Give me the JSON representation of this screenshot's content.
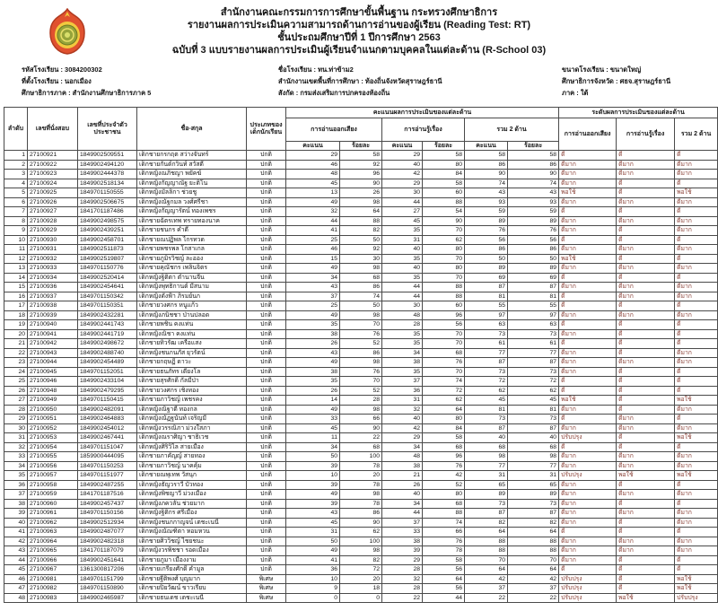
{
  "colors": {
    "text": "#161616",
    "border": "#4a4a4a",
    "level_text": "#8b4238",
    "logo_red": "#e0512f",
    "logo_yellow": "#f2c93e",
    "logo_green": "#96a43a"
  },
  "header": {
    "logo_icon": "obec-ministry-emblem",
    "line1": "สำนักงานคณะกรรมการการศึกษาขั้นพื้นฐาน กระทรวงศึกษาธิการ",
    "line2": "รายงานผลการประเมินความสามารถด้านการอ่านของผู้เรียน (Reading Test: RT)",
    "line3": "ชั้นประถมศึกษาปีที่ 1 ปีการศึกษา 2563",
    "line4": "ฉบับที่ 3 แบบรายงานผลการประเมินผู้เรียนจำแนกตามบุคคลในแต่ละด้าน (R-School 03)"
  },
  "school_info": {
    "col1": [
      "รหัสโรงเรียน : 3084200302",
      "ที่ตั้งโรงเรียน : นอกเมือง",
      "ศึกษาธิการภาค : สำนักงานศึกษาธิการภาค 5"
    ],
    "col2": [
      "ชื่อโรงเรียน : ทน.ท่าข้าม2",
      "สำนักงานเขตพื้นที่การศึกษา : ท้องถิ่นจังหวัดสุราษฎร์ธานี",
      "สังกัด : กรมส่งเสริมการปกครองท้องถิ่น"
    ],
    "col3": [
      "ขนาดโรงเรียน : ขนาดใหญ่",
      "ศึกษาธิการจังหวัด : ศธจ.สุราษฎร์ธานี",
      "ภาค : ใต้"
    ]
  },
  "table": {
    "col_no": "ลำดับ",
    "col_seat": "เลขที่นั่งสอบ",
    "col_id": "เลขที่ประจำตัวประชาชน",
    "col_name": "ชื่อ-สกุล",
    "col_type": "ประเภทของเด็กนักเรียน",
    "title_scores": "คะแนนผลการประเมินของแต่ละด้าน",
    "title_levels": "ระดับผลการประเมินของแต่ละด้าน",
    "col_reading_aloud": "การอ่านออกเสียง",
    "col_reading_comp": "การอ่านรู้เรื่อง",
    "col_total": "รวม 2 ด้าน",
    "col_score": "คะแนน",
    "col_percent": "ร้อยละ",
    "rows": [
      {
        "no": 1,
        "seat": "27100921",
        "id": "1849902509551",
        "name": "เด็กชายกรกฤต สว่างจันทร์",
        "type": "ปกติ",
        "s1": 29,
        "p1": 58,
        "s2": 29,
        "p2": 58,
        "s3": 58,
        "p3": 58,
        "l1": "ดี",
        "l2": "ดี",
        "l3": "ดี"
      },
      {
        "no": 2,
        "seat": "27100922",
        "id": "1849902494120",
        "name": "เด็กชายกันต์กวินท์ สวัสดี",
        "type": "ปกติ",
        "s1": 46,
        "p1": 92,
        "s2": 40,
        "p2": 80,
        "s3": 86,
        "p3": 86,
        "l1": "ดีมาก",
        "l2": "ดีมาก",
        "l3": "ดีมาก"
      },
      {
        "no": 3,
        "seat": "27100923",
        "id": "1849902444378",
        "name": "เด็กหญิงณภิชญา พยัคฆ์",
        "type": "ปกติ",
        "s1": 48,
        "p1": 96,
        "s2": 42,
        "p2": 84,
        "s3": 90,
        "p3": 90,
        "l1": "ดีมาก",
        "l2": "ดีมาก",
        "l3": "ดีมาก"
      },
      {
        "no": 4,
        "seat": "27100924",
        "id": "1849902518134",
        "name": "เด็กหญิงกัญญาณัฐ ยะติโน",
        "type": "ปกติ",
        "s1": 45,
        "p1": 90,
        "s2": 29,
        "p2": 58,
        "s3": 74,
        "p3": 74,
        "l1": "ดีมาก",
        "l2": "ดี",
        "l3": "ดี"
      },
      {
        "no": 5,
        "seat": "27100925",
        "id": "1849701150555",
        "name": "เด็กหญิงมัลลิกา ช่วยชู",
        "type": "ปกติ",
        "s1": 13,
        "p1": 26,
        "s2": 30,
        "p2": 60,
        "s3": 43,
        "p3": 43,
        "l1": "พอใช้",
        "l2": "ดี",
        "l3": "พอใช้"
      },
      {
        "no": 6,
        "seat": "27100926",
        "id": "1849902506675",
        "name": "เด็กหญิงณัฐกมล วงศ์ศรีชา",
        "type": "ปกติ",
        "s1": 49,
        "p1": 98,
        "s2": 44,
        "p2": 88,
        "s3": 93,
        "p3": 93,
        "l1": "ดีมาก",
        "l2": "ดีมาก",
        "l3": "ดีมาก"
      },
      {
        "no": 7,
        "seat": "27100927",
        "id": "1841701187486",
        "name": "เด็กหญิงกัญญารัตน์ ทองเพชร",
        "type": "ปกติ",
        "s1": 32,
        "p1": 64,
        "s2": 27,
        "p2": 54,
        "s3": 59,
        "p3": 59,
        "l1": "ดี",
        "l2": "ดี",
        "l3": "ดี"
      },
      {
        "no": 8,
        "seat": "27100928",
        "id": "1849902498575",
        "name": "เด็กชายฉัตรเทพ ทรายทองนาค",
        "type": "ปกติ",
        "s1": 44,
        "p1": 88,
        "s2": 45,
        "p2": 90,
        "s3": 89,
        "p3": 89,
        "l1": "ดีมาก",
        "l2": "ดีมาก",
        "l3": "ดีมาก"
      },
      {
        "no": 9,
        "seat": "27100929",
        "id": "1849902439251",
        "name": "เด็กชายชนกร คำดี",
        "type": "ปกติ",
        "s1": 41,
        "p1": 82,
        "s2": 35,
        "p2": 70,
        "s3": 76,
        "p3": 76,
        "l1": "ดีมาก",
        "l2": "ดี",
        "l3": "ดีมาก"
      },
      {
        "no": 10,
        "seat": "27100930",
        "id": "1849902458701",
        "name": "เด็กชายณปฏิพล ไกรทวด",
        "type": "ปกติ",
        "s1": 25,
        "p1": 50,
        "s2": 31,
        "p2": 62,
        "s3": 56,
        "p3": 56,
        "l1": "ดี",
        "l2": "ดี",
        "l3": "ดี"
      },
      {
        "no": 11,
        "seat": "27100931",
        "id": "1849902511873",
        "name": "เด็กชายพชรพล โกสาเกล",
        "type": "ปกติ",
        "s1": 46,
        "p1": 92,
        "s2": 40,
        "p2": 80,
        "s3": 86,
        "p3": 86,
        "l1": "ดีมาก",
        "l2": "ดีมาก",
        "l3": "ดีมาก"
      },
      {
        "no": 12,
        "seat": "27100932",
        "id": "1849902519807",
        "name": "เด็กชายภูมิรวิชญ์ ละออง",
        "type": "ปกติ",
        "s1": 15,
        "p1": 30,
        "s2": 35,
        "p2": 70,
        "s3": 50,
        "p3": 50,
        "l1": "พอใช้",
        "l2": "ดี",
        "l3": "ดี"
      },
      {
        "no": 13,
        "seat": "27100933",
        "id": "1849701150776",
        "name": "เด็กชายคุณัชกร เพลินจิตร",
        "type": "ปกติ",
        "s1": 49,
        "p1": 98,
        "s2": 40,
        "p2": 80,
        "s3": 89,
        "p3": 89,
        "l1": "ดีมาก",
        "l2": "ดีมาก",
        "l3": "ดีมาก"
      },
      {
        "no": 14,
        "seat": "27100934",
        "id": "1849902520414",
        "name": "เด็กหญิงฐิติตา ตำนานจีน",
        "type": "ปกติ",
        "s1": 34,
        "p1": 68,
        "s2": 35,
        "p2": 70,
        "s3": 69,
        "p3": 69,
        "l1": "ดี",
        "l2": "ดี",
        "l3": "ดี"
      },
      {
        "no": 15,
        "seat": "27100936",
        "id": "1849902454641",
        "name": "เด็กหญิงพุทธิกานต์ มีสนาม",
        "type": "ปกติ",
        "s1": 43,
        "p1": 86,
        "s2": 44,
        "p2": 88,
        "s3": 87,
        "p3": 87,
        "l1": "ดีมาก",
        "l2": "ดีมาก",
        "l3": "ดีมาก"
      },
      {
        "no": 16,
        "seat": "27100937",
        "id": "1849701150342",
        "name": "เด็กหญิงดังฟ้า ภิรมย์นก",
        "type": "ปกติ",
        "s1": 37,
        "p1": 74,
        "s2": 44,
        "p2": 88,
        "s3": 81,
        "p3": 81,
        "l1": "ดี",
        "l2": "ดีมาก",
        "l3": "ดีมาก"
      },
      {
        "no": 17,
        "seat": "27100938",
        "id": "1849701150351",
        "name": "เด็กชายวงศกร หนูแก้ว",
        "type": "ปกติ",
        "s1": 25,
        "p1": 50,
        "s2": 30,
        "p2": 60,
        "s3": 55,
        "p3": 55,
        "l1": "ดี",
        "l2": "ดี",
        "l3": "ดี"
      },
      {
        "no": 18,
        "seat": "27100939",
        "id": "1849902432281",
        "name": "เด็กหญิงภนิชชา ป่านปลอด",
        "type": "ปกติ",
        "s1": 49,
        "p1": 98,
        "s2": 48,
        "p2": 96,
        "s3": 97,
        "p3": 97,
        "l1": "ดีมาก",
        "l2": "ดีมาก",
        "l3": "ดีมาก"
      },
      {
        "no": 19,
        "seat": "27100940",
        "id": "1849902441743",
        "name": "เด็กชายพชิน คงแท่น",
        "type": "ปกติ",
        "s1": 35,
        "p1": 70,
        "s2": 28,
        "p2": 56,
        "s3": 63,
        "p3": 63,
        "l1": "ดี",
        "l2": "ดี",
        "l3": "ดี"
      },
      {
        "no": 20,
        "seat": "27100941",
        "id": "1849902441719",
        "name": "เด็กหญิงณิชา คงแท่น",
        "type": "ปกติ",
        "s1": 38,
        "p1": 76,
        "s2": 35,
        "p2": 70,
        "s3": 73,
        "p3": 73,
        "l1": "ดีมาก",
        "l2": "ดี",
        "l3": "ดี"
      },
      {
        "no": 21,
        "seat": "27100942",
        "id": "1849902498672",
        "name": "เด็กชายทิวรัฒ เครือแสง",
        "type": "ปกติ",
        "s1": 26,
        "p1": 52,
        "s2": 35,
        "p2": 70,
        "s3": 61,
        "p3": 61,
        "l1": "ดี",
        "l2": "ดี",
        "l3": "ดี"
      },
      {
        "no": 22,
        "seat": "27100943",
        "id": "1849902488740",
        "name": "เด็กหญิงชนกนภัส ยุวรัตน์",
        "type": "ปกติ",
        "s1": 43,
        "p1": 86,
        "s2": 34,
        "p2": 68,
        "s3": 77,
        "p3": 77,
        "l1": "ดีมาก",
        "l2": "ดี",
        "l3": "ดีมาก"
      },
      {
        "no": 23,
        "seat": "27100944",
        "id": "1849902454489",
        "name": "เด็กชายกฤษฏิ์ ดาวะ",
        "type": "ปกติ",
        "s1": 49,
        "p1": 98,
        "s2": 38,
        "p2": 76,
        "s3": 87,
        "p3": 87,
        "l1": "ดีมาก",
        "l2": "ดีมาก",
        "l3": "ดีมาก"
      },
      {
        "no": 24,
        "seat": "27100945",
        "id": "1849701152051",
        "name": "เด็กชายธนภัทร เดี่ยงโล",
        "type": "ปกติ",
        "s1": 38,
        "p1": 76,
        "s2": 35,
        "p2": 70,
        "s3": 73,
        "p3": 73,
        "l1": "ดีมาก",
        "l2": "ดี",
        "l3": "ดี"
      },
      {
        "no": 25,
        "seat": "27100946",
        "id": "1849902433104",
        "name": "เด็กชายสุรศักดิ์ กัลมีป่า",
        "type": "ปกติ",
        "s1": 35,
        "p1": 70,
        "s2": 37,
        "p2": 74,
        "s3": 72,
        "p3": 72,
        "l1": "ดี",
        "l2": "ดี",
        "l3": "ดี"
      },
      {
        "no": 26,
        "seat": "27100948",
        "id": "1849902479295",
        "name": "เด็กชายวงศกร เชิงทอง",
        "type": "ปกติ",
        "s1": 26,
        "p1": 52,
        "s2": 36,
        "p2": 72,
        "s3": 62,
        "p3": 62,
        "l1": "ดี",
        "l2": "ดี",
        "l3": "ดี"
      },
      {
        "no": 27,
        "seat": "27100949",
        "id": "1849701150415",
        "name": "เด็กชายภาวิชญ์ เพชรคง",
        "type": "ปกติ",
        "s1": 14,
        "p1": 28,
        "s2": 31,
        "p2": 62,
        "s3": 45,
        "p3": 45,
        "l1": "พอใช้",
        "l2": "ดี",
        "l3": "พอใช้"
      },
      {
        "no": 28,
        "seat": "27100950",
        "id": "1849902482091",
        "name": "เด็กหญิงณิฐาดี ทองกล",
        "type": "ปกติ",
        "s1": 49,
        "p1": 98,
        "s2": 32,
        "p2": 64,
        "s3": 81,
        "p3": 81,
        "l1": "ดีมาก",
        "l2": "ดี",
        "l3": "ดีมาก"
      },
      {
        "no": 29,
        "seat": "27100951",
        "id": "1849902464883",
        "name": "เด็กหญิงณัฏฐนันท์ เจริญมี",
        "type": "ปกติ",
        "s1": 33,
        "p1": 66,
        "s2": 40,
        "p2": 80,
        "s3": 73,
        "p3": 73,
        "l1": "ดี",
        "l2": "ดีมาก",
        "l3": "ดี"
      },
      {
        "no": 30,
        "seat": "27100952",
        "id": "1849902454012",
        "name": "เด็กหญิงวรรณิภา ม่วงใสภา",
        "type": "ปกติ",
        "s1": 45,
        "p1": 90,
        "s2": 42,
        "p2": 84,
        "s3": 87,
        "p3": 87,
        "l1": "ดีมาก",
        "l2": "ดีมาก",
        "l3": "ดีมาก"
      },
      {
        "no": 31,
        "seat": "27100953",
        "id": "1849902467441",
        "name": "เด็กหญิงณราศิญา ชาธิเวช",
        "type": "ปกติ",
        "s1": 11,
        "p1": 22,
        "s2": 29,
        "p2": 58,
        "s3": 40,
        "p3": 40,
        "l1": "ปรับปรุง",
        "l2": "ดี",
        "l3": "พอใช้"
      },
      {
        "no": 32,
        "seat": "27100954",
        "id": "1849701151047",
        "name": "เด็กหญิงศิริวิไล สายเมือง",
        "type": "ปกติ",
        "s1": 34,
        "p1": 68,
        "s2": 34,
        "p2": 68,
        "s3": 68,
        "p3": 68,
        "l1": "ดี",
        "l2": "ดี",
        "l3": "ดี"
      },
      {
        "no": 33,
        "seat": "27100955",
        "id": "1859900444095",
        "name": "เด็กชายภาคัญญ์ สายทอง",
        "type": "ปกติ",
        "s1": 50,
        "p1": 100,
        "s2": 48,
        "p2": 96,
        "s3": 98,
        "p3": 98,
        "l1": "ดีมาก",
        "l2": "ดีมาก",
        "l3": "ดีมาก"
      },
      {
        "no": 34,
        "seat": "27100956",
        "id": "1849701150253",
        "name": "เด็กชายภาวิชญ์ นาคคุ้ม",
        "type": "ปกติ",
        "s1": 39,
        "p1": 78,
        "s2": 38,
        "p2": 76,
        "s3": 77,
        "p3": 77,
        "l1": "ดีมาก",
        "l2": "ดีมาก",
        "l3": "ดีมาก"
      },
      {
        "no": 35,
        "seat": "27100957",
        "id": "1849701151977",
        "name": "เด็กชายณพุเทพ วัสนุก",
        "type": "ปกติ",
        "s1": 10,
        "p1": 20,
        "s2": 21,
        "p2": 42,
        "s3": 31,
        "p3": 31,
        "l1": "ปรับปรุง",
        "l2": "พอใช้",
        "l3": "พอใช้"
      },
      {
        "no": 36,
        "seat": "27100958",
        "id": "1849902487255",
        "name": "เด็กหญิงธัญวราวี บัวทอง",
        "type": "ปกติ",
        "s1": 39,
        "p1": 78,
        "s2": 26,
        "p2": 52,
        "s3": 65,
        "p3": 65,
        "l1": "ดีมาก",
        "l2": "ดี",
        "l3": "ดี"
      },
      {
        "no": 37,
        "seat": "27100959",
        "id": "1841701187516",
        "name": "เด็กหญิงพิชญาวี ม่วงเมือง",
        "type": "ปกติ",
        "s1": 49,
        "p1": 98,
        "s2": 40,
        "p2": 80,
        "s3": 89,
        "p3": 89,
        "l1": "ดีมาก",
        "l2": "ดีมาก",
        "l3": "ดีมาก"
      },
      {
        "no": 38,
        "seat": "27100960",
        "id": "1849902457437",
        "name": "เด็กหญิงภควลัน ช่วยมาก",
        "type": "ปกติ",
        "s1": 39,
        "p1": 78,
        "s2": 34,
        "p2": 68,
        "s3": 73,
        "p3": 73,
        "l1": "ดีมาก",
        "l2": "ดี",
        "l3": "ดี"
      },
      {
        "no": 39,
        "seat": "27100961",
        "id": "1849701150156",
        "name": "เด็กหญิงฐิติกร ศรีเมือง",
        "type": "ปกติ",
        "s1": 43,
        "p1": 86,
        "s2": 44,
        "p2": 88,
        "s3": 87,
        "p3": 87,
        "l1": "ดีมาก",
        "l2": "ดีมาก",
        "l3": "ดีมาก"
      },
      {
        "no": 40,
        "seat": "27100962",
        "id": "1849902512934",
        "name": "เด็กหญิงชนกกาญจน์ เตชะเนนี",
        "type": "ปกติ",
        "s1": 45,
        "p1": 90,
        "s2": 37,
        "p2": 74,
        "s3": 82,
        "p3": 82,
        "l1": "ดีมาก",
        "l2": "ดี",
        "l3": "ดีมาก"
      },
      {
        "no": 41,
        "seat": "27100963",
        "id": "1849902487077",
        "name": "เด็กหญิงณัณฑิตา หอมหวน",
        "type": "ปกติ",
        "s1": 31,
        "p1": 62,
        "s2": 33,
        "p2": 66,
        "s3": 64,
        "p3": 64,
        "l1": "ดี",
        "l2": "ดี",
        "l3": "ดี"
      },
      {
        "no": 42,
        "seat": "27100964",
        "id": "1849902482318",
        "name": "เด็กชายศิววิชญ์ ไชยชนะ",
        "type": "ปกติ",
        "s1": 50,
        "p1": 100,
        "s2": 38,
        "p2": 76,
        "s3": 88,
        "p3": 88,
        "l1": "ดีมาก",
        "l2": "ดีมาก",
        "l3": "ดีมาก"
      },
      {
        "no": 43,
        "seat": "27100965",
        "id": "1841701187079",
        "name": "เด็กหญิงวรพิชชา รอดเมือง",
        "type": "ปกติ",
        "s1": 49,
        "p1": 98,
        "s2": 39,
        "p2": 78,
        "s3": 88,
        "p3": 88,
        "l1": "ดีมาก",
        "l2": "ดีมาก",
        "l3": "ดีมาก"
      },
      {
        "no": 44,
        "seat": "27100966",
        "id": "1849902451641",
        "name": "เด็กชายภูมา เมืองงาม",
        "type": "ปกติ",
        "s1": 41,
        "p1": 82,
        "s2": 29,
        "p2": 58,
        "s3": 70,
        "p3": 70,
        "l1": "ดีมาก",
        "l2": "ดี",
        "l3": "ดี"
      },
      {
        "no": 45,
        "seat": "27100967",
        "id": "1361300817206",
        "name": "เด็กชายเกรียงศักดิ์ คำมูล",
        "type": "ปกติ",
        "s1": 36,
        "p1": 72,
        "s2": 28,
        "p2": 56,
        "s3": 64,
        "p3": 64,
        "l1": "ดี",
        "l2": "ดี",
        "l3": "ดี"
      },
      {
        "no": 46,
        "seat": "27100981",
        "id": "1849701151799",
        "name": "เด็กชายฐีติพงศ์ บุญมาก",
        "type": "พิเศษ",
        "s1": 10,
        "p1": 20,
        "s2": 32,
        "p2": 64,
        "s3": 42,
        "p3": 42,
        "l1": "ปรับปรุง",
        "l2": "ดี",
        "l3": "พอใช้"
      },
      {
        "no": 47,
        "seat": "27100982",
        "id": "1849701150890",
        "name": "เด็กชายปิยวัฒน์ ขาวเรียบ",
        "type": "พิเศษ",
        "s1": 9,
        "p1": 18,
        "s2": 28,
        "p2": 56,
        "s3": 37,
        "p3": 37,
        "l1": "ปรับปรุง",
        "l2": "ดี",
        "l3": "พอใช้"
      },
      {
        "no": 48,
        "seat": "27100983",
        "id": "1849902465987",
        "name": "เด็กชายธนเดช เตชะเนนี",
        "type": "พิเศษ",
        "s1": 0,
        "p1": 0,
        "s2": 22,
        "p2": 44,
        "s3": 22,
        "p3": 22,
        "l1": "ปรับปรุง",
        "l2": "พอใช้",
        "l3": "ปรับปรุง"
      }
    ]
  }
}
